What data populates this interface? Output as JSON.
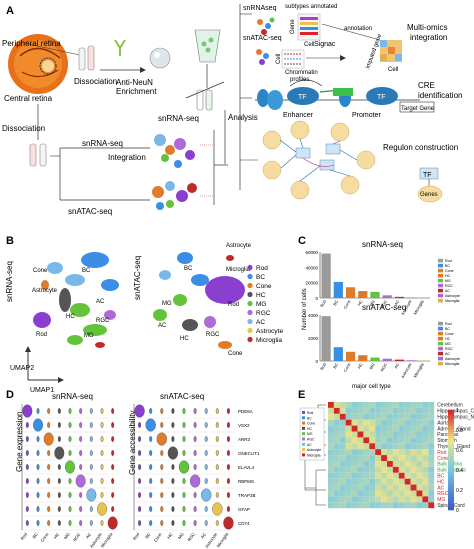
{
  "panels": {
    "a": "A",
    "b": "B",
    "c": "C",
    "d": "D",
    "e": "E"
  },
  "panel_a": {
    "peripheral_retina": "Peripheral retina",
    "central_retina": "Central retina",
    "dissociation": "Dissociation",
    "dissociation_left": "Dissociation",
    "anti_neun_1": "Anti-NeuN",
    "anti_neun_2": "Enrichment",
    "snrna_seq_mid": "snRNA-seq",
    "snrna_seq_left": "snRNA-seq",
    "snatac_seq_left": "snATAC-seq",
    "integration": "Integration",
    "analysis": "Analysis",
    "snrnaseq_top": "snRNAseq",
    "snatac_seq_top": "snATAC-seq",
    "subtypes": "subtypes annotated",
    "gene": "Gene",
    "cell": "Cell",
    "signac": "Signac",
    "chromatin_1": "Chrommatin",
    "chromatin_2": "profiles",
    "annotation": "annotation",
    "imputed_gene": "imputed gene",
    "cell2": "Cell",
    "cell3": "Cell",
    "multiomics_1": "Multi-omics",
    "multiomics_2": "integration",
    "tf1": "TF",
    "tf2": "TF",
    "tf3": "TF",
    "enhancer": "Enhancer",
    "promoter": "Promoter",
    "target_gene": "Target Gene",
    "cre_1": "CRE",
    "cre_2": "identification",
    "regulon": "Regulon construction",
    "genes": "Genes"
  },
  "panel_b": {
    "left_title": "snRNA-seq",
    "right_title": "snATAC-seq",
    "umap1": "UMAP1",
    "umap2": "UMAP2",
    "labels_left": [
      "Cone",
      "BC",
      "Astrocyte",
      "HC",
      "Rod",
      "AC",
      "RGC",
      "MG"
    ],
    "labels_right": [
      "Astrocyte",
      "Microglia",
      "BC",
      "MG",
      "Rod",
      "AC",
      "HC",
      "RGC",
      "Cone"
    ],
    "legend": [
      {
        "label": "Rod",
        "color": "#8a3fd0"
      },
      {
        "label": "BC",
        "color": "#3a8ee6"
      },
      {
        "label": "Cone",
        "color": "#e07b2a"
      },
      {
        "label": "HC",
        "color": "#555555"
      },
      {
        "label": "MG",
        "color": "#63c43c"
      },
      {
        "label": "RGC",
        "color": "#b06ad8"
      },
      {
        "label": "AC",
        "color": "#7ab8e8"
      },
      {
        "label": "Astrocyte",
        "color": "#e9c44b"
      },
      {
        "label": "Microglia",
        "color": "#c02a2a"
      }
    ]
  },
  "chart_data": [
    {
      "type": "bar",
      "title": "snRNA-seq",
      "ylabel": "Number of cells",
      "xlabel": "major cell type",
      "categories": [
        "Rod",
        "BC",
        "Cone",
        "HC",
        "MG",
        "RGC",
        "AC",
        "Astrocyte",
        "Microglia"
      ],
      "values": [
        58000,
        21000,
        14000,
        9000,
        8000,
        3500,
        1500,
        600,
        200
      ],
      "ylim": [
        0,
        60000
      ],
      "yticks": [
        "60000",
        "40000",
        "20000",
        "0"
      ],
      "colors": [
        "#9a9a9a",
        "#3a8ee6",
        "#e07b2a",
        "#e0762a",
        "#63c43c",
        "#b06ad8",
        "#c02a2a",
        "#a06bd8",
        "#d9b247"
      ],
      "legend_position": "right"
    },
    {
      "type": "bar",
      "title": "snATAC-seq",
      "ylabel": "Number of cells",
      "xlabel": "major cell type",
      "categories": [
        "Rod",
        "BC",
        "Cone",
        "HC",
        "MG",
        "RGC",
        "AC",
        "Astrocyte",
        "Microglia"
      ],
      "values": [
        3900,
        1200,
        800,
        500,
        300,
        200,
        120,
        60,
        30
      ],
      "ylim": [
        0,
        4000
      ],
      "yticks": [
        "4000",
        "2000",
        "0"
      ],
      "colors": [
        "#9a9a9a",
        "#3a8ee6",
        "#e07b2a",
        "#e0762a",
        "#63c43c",
        "#b06ad8",
        "#c02a2a",
        "#a06bd8",
        "#d9b247"
      ],
      "legend_position": "right"
    },
    {
      "type": "heatmap",
      "legend_labels": [
        "Rod",
        "BC",
        "Cone",
        "HC",
        "MG",
        "RGC",
        "AC",
        "Astrocyte",
        "Microglia"
      ],
      "rows": [
        "Cerebellum",
        "Hippocampus_C",
        "Hippocampus_N",
        "Aorta",
        "Adrenal_Gland",
        "Pancreas",
        "Stomach",
        "Thyroid_Gland",
        "Rod",
        "Cone",
        "Bulk_retina",
        "Bulk_macula",
        "BC",
        "HC",
        "AC",
        "RGC",
        "MG",
        "Spinal_Cord"
      ],
      "row_colors": [
        "#222222",
        "#222222",
        "#222222",
        "#222222",
        "#222222",
        "#222222",
        "#222222",
        "#222222",
        "#e0202a",
        "#e0202a",
        "#2aaa3a",
        "#2aaa3a",
        "#e0202a",
        "#e0202a",
        "#e0202a",
        "#e0202a",
        "#e0202a",
        "#222222"
      ],
      "colorbar_ticks": [
        "1",
        "0.8",
        "0.6",
        "0.4",
        "0.2",
        "0"
      ],
      "legend_position": "top-left"
    }
  ],
  "panel_d": {
    "left_title": "snRNA-seq",
    "right_title": "snATAC-seq",
    "ylabel_left": "Gene expression",
    "ylabel_right": "Gene accessibility",
    "genes": [
      "PDE6A",
      "VSX2",
      "ARR3",
      "ONECUT1",
      "ELAVL4",
      "RBPMS",
      "TRAP2B",
      "GFAP",
      "CD74"
    ],
    "xcats": [
      "Rod",
      "BC",
      "Cone",
      "HC",
      "MG",
      "RGC",
      "AC",
      "Astrocyte",
      "Microglia"
    ],
    "colors": [
      "#8a3fd0",
      "#3a8ee6",
      "#e07b2a",
      "#555555",
      "#63c43c",
      "#b06ad8",
      "#7ab8e8",
      "#e9c44b",
      "#c02a2a"
    ]
  }
}
